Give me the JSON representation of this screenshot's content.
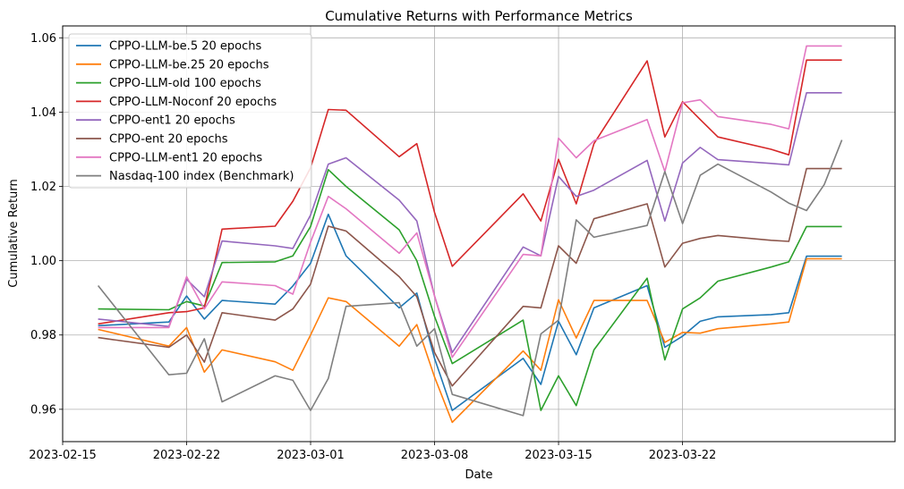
{
  "chart_data": {
    "type": "line",
    "title": "Cumulative Returns with Performance Metrics",
    "xlabel": "Date",
    "ylabel": "Cumulative Return",
    "xlim": [
      "2023-02-15",
      "2023-04-03"
    ],
    "ylim": [
      0.9513,
      1.0632
    ],
    "x_ticks": [
      "2023-02-15",
      "2023-02-22",
      "2023-03-01",
      "2023-03-08",
      "2023-03-15",
      "2023-03-22"
    ],
    "y_ticks": [
      "0.96",
      "0.98",
      "1.00",
      "1.02",
      "1.04",
      "1.06"
    ],
    "grid": true,
    "legend_position": "upper-left",
    "dates": [
      "2023-02-17",
      "2023-02-21",
      "2023-02-22",
      "2023-02-23",
      "2023-02-24",
      "2023-02-27",
      "2023-02-28",
      "2023-03-01",
      "2023-03-02",
      "2023-03-03",
      "2023-03-06",
      "2023-03-07",
      "2023-03-08",
      "2023-03-09",
      "2023-03-13",
      "2023-03-14",
      "2023-03-15",
      "2023-03-16",
      "2023-03-17",
      "2023-03-20",
      "2023-03-21",
      "2023-03-22",
      "2023-03-23",
      "2023-03-24",
      "2023-03-27",
      "2023-03-28",
      "2023-03-29",
      "2023-03-30",
      "2023-03-31"
    ],
    "series": [
      {
        "name": "CPPO-LLM-be.5 20 epochs",
        "color": "#1f77b4",
        "values": [
          0.9825,
          0.9835,
          0.9905,
          0.9843,
          0.9893,
          0.9883,
          0.9932,
          0.9993,
          1.0125,
          1.0013,
          0.9873,
          0.9913,
          0.9737,
          0.9597,
          0.9737,
          0.9667,
          0.9837,
          0.9747,
          0.9873,
          0.9933,
          0.9767,
          0.9797,
          0.9837,
          0.9849,
          0.9855,
          0.986,
          1.0012,
          1.0012,
          1.0012
        ]
      },
      {
        "name": "CPPO-LLM-be.25 20 epochs",
        "color": "#ff7f0e",
        "values": [
          0.9815,
          0.977,
          0.982,
          0.97,
          0.976,
          0.9728,
          0.9705,
          0.98,
          0.99,
          0.989,
          0.977,
          0.9828,
          0.9687,
          0.9565,
          0.9757,
          0.9705,
          0.9895,
          0.9792,
          0.9893,
          0.9893,
          0.978,
          0.9807,
          0.9805,
          0.9817,
          0.983,
          0.9835,
          1.0005,
          1.0005,
          1.0005
        ]
      },
      {
        "name": "CPPO-LLM-old 100 epochs",
        "color": "#2ca02c",
        "values": [
          0.987,
          0.9868,
          0.989,
          0.9878,
          0.9995,
          0.9997,
          1.0013,
          1.0092,
          1.0245,
          1.02,
          1.0083,
          1.0,
          0.985,
          0.9723,
          0.984,
          0.9597,
          0.969,
          0.961,
          0.976,
          0.9953,
          0.9733,
          0.987,
          0.99,
          0.9945,
          0.9983,
          0.9997,
          1.0092,
          1.0092,
          1.0092
        ]
      },
      {
        "name": "CPPO-LLM-Noconf 20 epochs",
        "color": "#d62728",
        "values": [
          0.983,
          0.986,
          0.9863,
          0.9873,
          1.0085,
          1.0093,
          1.016,
          1.025,
          1.0407,
          1.0405,
          1.028,
          1.0315,
          1.013,
          0.9985,
          1.018,
          1.0107,
          1.0273,
          1.0153,
          1.0315,
          1.0538,
          1.0333,
          1.0428,
          1.038,
          1.0333,
          1.03,
          1.0285,
          1.054,
          1.054,
          1.054
        ]
      },
      {
        "name": "CPPO-ent1 20 epochs",
        "color": "#9467bd",
        "values": [
          0.9843,
          0.9823,
          0.995,
          0.9903,
          1.0053,
          1.004,
          1.0033,
          1.0123,
          1.026,
          1.0277,
          1.0163,
          1.0107,
          0.9905,
          0.9753,
          1.0037,
          1.0013,
          1.0227,
          1.0173,
          1.019,
          1.027,
          1.0107,
          1.0263,
          1.0305,
          1.0272,
          1.0262,
          1.0258,
          1.0452,
          1.0452,
          1.0452
        ]
      },
      {
        "name": "CPPO-ent 20 epochs",
        "color": "#8c564b",
        "values": [
          0.9793,
          0.9767,
          0.98,
          0.9727,
          0.986,
          0.984,
          0.987,
          0.9937,
          1.0093,
          1.008,
          0.9957,
          0.9903,
          0.9753,
          0.9663,
          0.9877,
          0.9873,
          1.004,
          0.9993,
          1.0113,
          1.0153,
          0.9983,
          1.0047,
          1.006,
          1.0068,
          1.0055,
          1.0052,
          1.0248,
          1.0248,
          1.0248
        ]
      },
      {
        "name": "CPPO-LLM-ent1 20 epochs",
        "color": "#e377c2",
        "values": [
          0.982,
          0.982,
          0.9957,
          0.987,
          0.9943,
          0.9933,
          0.991,
          1.005,
          1.0173,
          1.014,
          1.002,
          1.0075,
          0.9905,
          0.974,
          1.0017,
          1.0013,
          1.033,
          1.0277,
          1.0323,
          1.038,
          1.024,
          1.0425,
          1.0433,
          1.0388,
          1.0367,
          1.0355,
          1.0578,
          1.0578,
          1.0578
        ]
      },
      {
        "name": "Nasdaq-100 index (Benchmark)",
        "color": "#7f7f7f",
        "values": [
          0.9933,
          0.9693,
          0.9697,
          0.979,
          0.962,
          0.969,
          0.9678,
          0.9597,
          0.9683,
          0.9877,
          0.9887,
          0.977,
          0.9817,
          0.964,
          0.9583,
          0.9803,
          0.984,
          1.011,
          1.0063,
          1.0095,
          1.024,
          1.01,
          1.023,
          1.026,
          1.0185,
          1.0155,
          1.0135,
          1.0205,
          1.0325
        ]
      }
    ]
  }
}
